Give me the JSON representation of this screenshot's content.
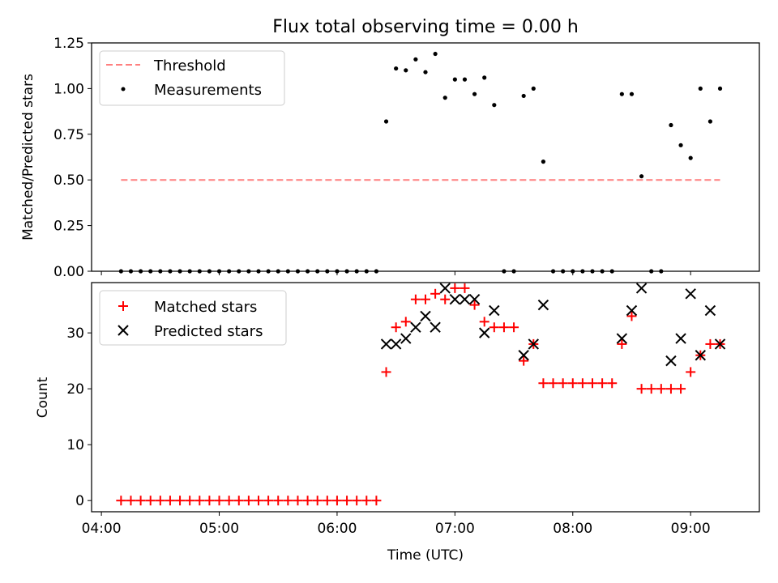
{
  "chart_data": [
    {
      "type": "scatter",
      "title": "Flux total observing time = 0.00 h",
      "xlabel": "",
      "ylabel": "Matched/Predicted stars",
      "ylim": [
        0,
        1.25
      ],
      "xlim": [
        "03:55",
        "09:35"
      ],
      "yticks": [
        "0.00",
        "0.25",
        "0.50",
        "0.75",
        "1.00",
        "1.25"
      ],
      "legend_position": "upper-left",
      "threshold": {
        "name": "Threshold",
        "value": 0.5,
        "x_start": "04:10",
        "x_end": "09:15",
        "color": "#ff7f7f",
        "style": "dashed"
      },
      "series": [
        {
          "name": "Measurements",
          "color": "#000000",
          "marker": "dot",
          "points": [
            [
              "04:10",
              0
            ],
            [
              "04:15",
              0
            ],
            [
              "04:20",
              0
            ],
            [
              "04:25",
              0
            ],
            [
              "04:30",
              0
            ],
            [
              "04:35",
              0
            ],
            [
              "04:40",
              0
            ],
            [
              "04:45",
              0
            ],
            [
              "04:50",
              0
            ],
            [
              "04:55",
              0
            ],
            [
              "05:00",
              0
            ],
            [
              "05:05",
              0
            ],
            [
              "05:10",
              0
            ],
            [
              "05:15",
              0
            ],
            [
              "05:20",
              0
            ],
            [
              "05:25",
              0
            ],
            [
              "05:30",
              0
            ],
            [
              "05:35",
              0
            ],
            [
              "05:40",
              0
            ],
            [
              "05:45",
              0
            ],
            [
              "05:50",
              0
            ],
            [
              "05:55",
              0
            ],
            [
              "06:00",
              0
            ],
            [
              "06:05",
              0
            ],
            [
              "06:10",
              0
            ],
            [
              "06:15",
              0
            ],
            [
              "06:20",
              0
            ],
            [
              "06:25",
              0.82
            ],
            [
              "06:30",
              1.11
            ],
            [
              "06:35",
              1.1
            ],
            [
              "06:40",
              1.16
            ],
            [
              "06:45",
              1.09
            ],
            [
              "06:50",
              1.19
            ],
            [
              "06:55",
              0.95
            ],
            [
              "07:00",
              1.05
            ],
            [
              "07:05",
              1.05
            ],
            [
              "07:10",
              0.97
            ],
            [
              "07:15",
              1.06
            ],
            [
              "07:20",
              0.91
            ],
            [
              "07:25",
              0
            ],
            [
              "07:30",
              0
            ],
            [
              "07:35",
              0.96
            ],
            [
              "07:40",
              1.0
            ],
            [
              "07:45",
              0.6
            ],
            [
              "07:50",
              0
            ],
            [
              "07:55",
              0
            ],
            [
              "08:00",
              0
            ],
            [
              "08:05",
              0
            ],
            [
              "08:10",
              0
            ],
            [
              "08:15",
              0
            ],
            [
              "08:20",
              0
            ],
            [
              "08:25",
              0.97
            ],
            [
              "08:30",
              0.97
            ],
            [
              "08:35",
              0.52
            ],
            [
              "08:40",
              0
            ],
            [
              "08:45",
              0
            ],
            [
              "08:50",
              0.8
            ],
            [
              "08:55",
              0.69
            ],
            [
              "09:00",
              0.62
            ],
            [
              "09:05",
              1.0
            ],
            [
              "09:10",
              0.82
            ],
            [
              "09:15",
              1.0
            ]
          ]
        }
      ]
    },
    {
      "type": "scatter",
      "title": "",
      "xlabel": "Time (UTC)",
      "ylabel": "Count",
      "ylim": [
        -2,
        39
      ],
      "xlim": [
        "03:55",
        "09:35"
      ],
      "yticks": [
        "0",
        "10",
        "20",
        "30"
      ],
      "xticks": [
        "04:00",
        "05:00",
        "06:00",
        "07:00",
        "08:00",
        "09:00"
      ],
      "legend_position": "upper-left",
      "series": [
        {
          "name": "Matched stars",
          "color": "#ff0000",
          "marker": "plus",
          "points": [
            [
              "04:10",
              0
            ],
            [
              "04:15",
              0
            ],
            [
              "04:20",
              0
            ],
            [
              "04:25",
              0
            ],
            [
              "04:30",
              0
            ],
            [
              "04:35",
              0
            ],
            [
              "04:40",
              0
            ],
            [
              "04:45",
              0
            ],
            [
              "04:50",
              0
            ],
            [
              "04:55",
              0
            ],
            [
              "05:00",
              0
            ],
            [
              "05:05",
              0
            ],
            [
              "05:10",
              0
            ],
            [
              "05:15",
              0
            ],
            [
              "05:20",
              0
            ],
            [
              "05:25",
              0
            ],
            [
              "05:30",
              0
            ],
            [
              "05:35",
              0
            ],
            [
              "05:40",
              0
            ],
            [
              "05:45",
              0
            ],
            [
              "05:50",
              0
            ],
            [
              "05:55",
              0
            ],
            [
              "06:00",
              0
            ],
            [
              "06:05",
              0
            ],
            [
              "06:10",
              0
            ],
            [
              "06:15",
              0
            ],
            [
              "06:20",
              0
            ],
            [
              "06:25",
              23
            ],
            [
              "06:30",
              31
            ],
            [
              "06:35",
              32
            ],
            [
              "06:40",
              36
            ],
            [
              "06:45",
              36
            ],
            [
              "06:50",
              37
            ],
            [
              "06:55",
              36
            ],
            [
              "07:00",
              38
            ],
            [
              "07:05",
              38
            ],
            [
              "07:10",
              35
            ],
            [
              "07:15",
              32
            ],
            [
              "07:20",
              31
            ],
            [
              "07:25",
              31
            ],
            [
              "07:30",
              31
            ],
            [
              "07:35",
              25
            ],
            [
              "07:40",
              28
            ],
            [
              "07:45",
              21
            ],
            [
              "07:50",
              21
            ],
            [
              "07:55",
              21
            ],
            [
              "08:00",
              21
            ],
            [
              "08:05",
              21
            ],
            [
              "08:10",
              21
            ],
            [
              "08:15",
              21
            ],
            [
              "08:20",
              21
            ],
            [
              "08:25",
              28
            ],
            [
              "08:30",
              33
            ],
            [
              "08:35",
              20
            ],
            [
              "08:40",
              20
            ],
            [
              "08:45",
              20
            ],
            [
              "08:50",
              20
            ],
            [
              "08:55",
              20
            ],
            [
              "09:00",
              23
            ],
            [
              "09:05",
              26
            ],
            [
              "09:10",
              28
            ],
            [
              "09:15",
              28
            ]
          ]
        },
        {
          "name": "Predicted stars",
          "color": "#000000",
          "marker": "x",
          "points": [
            [
              "06:25",
              28
            ],
            [
              "06:30",
              28
            ],
            [
              "06:35",
              29
            ],
            [
              "06:40",
              31
            ],
            [
              "06:45",
              33
            ],
            [
              "06:50",
              31
            ],
            [
              "06:55",
              38
            ],
            [
              "07:00",
              36
            ],
            [
              "07:05",
              36
            ],
            [
              "07:10",
              36
            ],
            [
              "07:15",
              30
            ],
            [
              "07:20",
              34
            ],
            [
              "07:35",
              26
            ],
            [
              "07:40",
              28
            ],
            [
              "07:45",
              35
            ],
            [
              "08:25",
              29
            ],
            [
              "08:30",
              34
            ],
            [
              "08:35",
              38
            ],
            [
              "08:50",
              25
            ],
            [
              "08:55",
              29
            ],
            [
              "09:00",
              37
            ],
            [
              "09:05",
              26
            ],
            [
              "09:10",
              34
            ],
            [
              "09:15",
              28
            ]
          ]
        }
      ]
    }
  ]
}
